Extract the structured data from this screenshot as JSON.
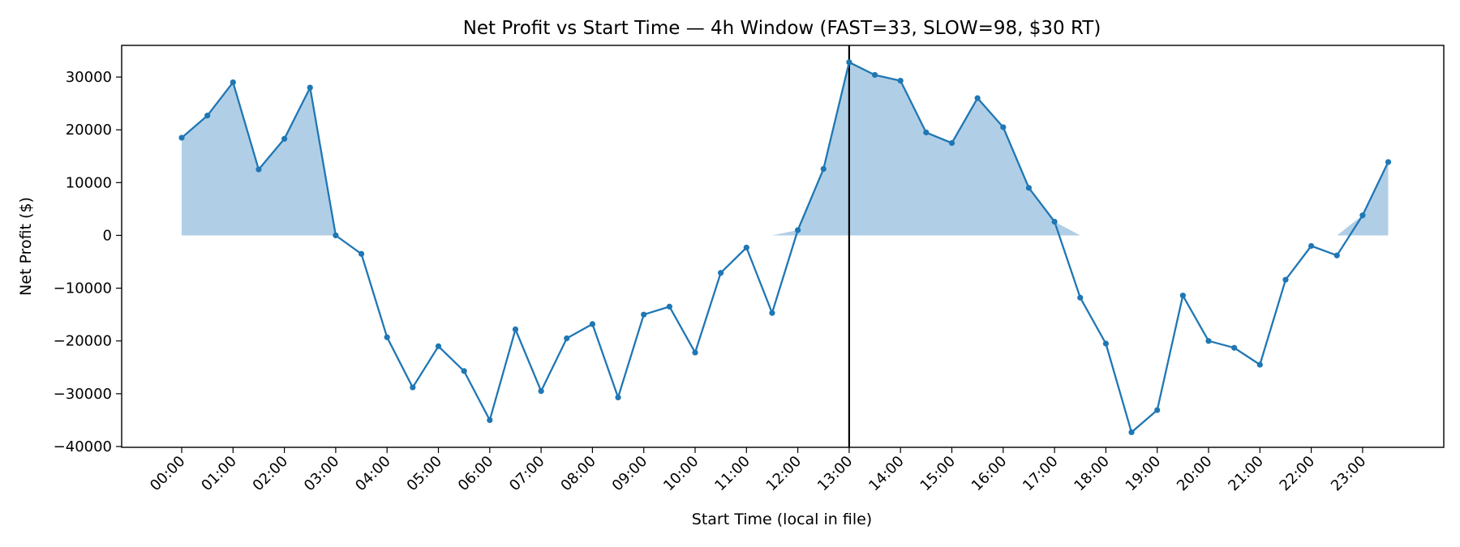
{
  "chart_data": {
    "type": "line",
    "title": "Net Profit vs Start Time — 4h Window (FAST=33, SLOW=98, $30 RT)",
    "xlabel": "Start Time (local in file)",
    "ylabel": "Net Profit ($)",
    "ylim": [
      -40000,
      36000
    ],
    "xlim": [
      "00:00",
      "23:30"
    ],
    "grid": false,
    "yticks": [
      30000,
      20000,
      10000,
      0,
      -10000,
      -20000,
      -30000,
      -40000
    ],
    "ytick_labels": [
      "30000",
      "20000",
      "10000",
      "0",
      "−10000",
      "−20000",
      "−30000",
      "−40000"
    ],
    "xtick_labels": [
      "00:00",
      "01:00",
      "02:00",
      "03:00",
      "04:00",
      "05:00",
      "06:00",
      "07:00",
      "08:00",
      "09:00",
      "10:00",
      "11:00",
      "12:00",
      "13:00",
      "14:00",
      "15:00",
      "16:00",
      "17:00",
      "18:00",
      "19:00",
      "20:00",
      "21:00",
      "22:00",
      "23:00"
    ],
    "x": [
      "00:00",
      "00:30",
      "01:00",
      "01:30",
      "02:00",
      "02:30",
      "03:00",
      "03:30",
      "04:00",
      "04:30",
      "05:00",
      "05:30",
      "06:00",
      "06:30",
      "07:00",
      "07:30",
      "08:00",
      "08:30",
      "09:00",
      "09:30",
      "10:00",
      "10:30",
      "11:00",
      "11:30",
      "12:00",
      "12:30",
      "13:00",
      "13:30",
      "14:00",
      "14:30",
      "15:00",
      "15:30",
      "16:00",
      "16:30",
      "17:00",
      "17:30",
      "18:00",
      "18:30",
      "19:00",
      "19:30",
      "20:00",
      "20:30",
      "21:00",
      "21:30",
      "22:00",
      "22:30",
      "23:00",
      "23:30"
    ],
    "values": [
      18500,
      22700,
      29000,
      12500,
      18300,
      28000,
      0,
      -3500,
      -19300,
      -28800,
      -21000,
      -25700,
      -35000,
      -17800,
      -29500,
      -19500,
      -16800,
      -30700,
      -15000,
      -13500,
      -22200,
      -7100,
      -2300,
      -14700,
      1000,
      12600,
      32800,
      30400,
      29300,
      19500,
      17500,
      26000,
      20500,
      9000,
      2600,
      -11800,
      -20500,
      -37300,
      -33100,
      -11400,
      -20000,
      -21300,
      -24500,
      -8400,
      -2000,
      -3800,
      3800,
      13900
    ],
    "vline": "13:00",
    "colors": {
      "line": "#1f77b4",
      "fill": "#b0cfe6",
      "vline": "#000000"
    }
  }
}
